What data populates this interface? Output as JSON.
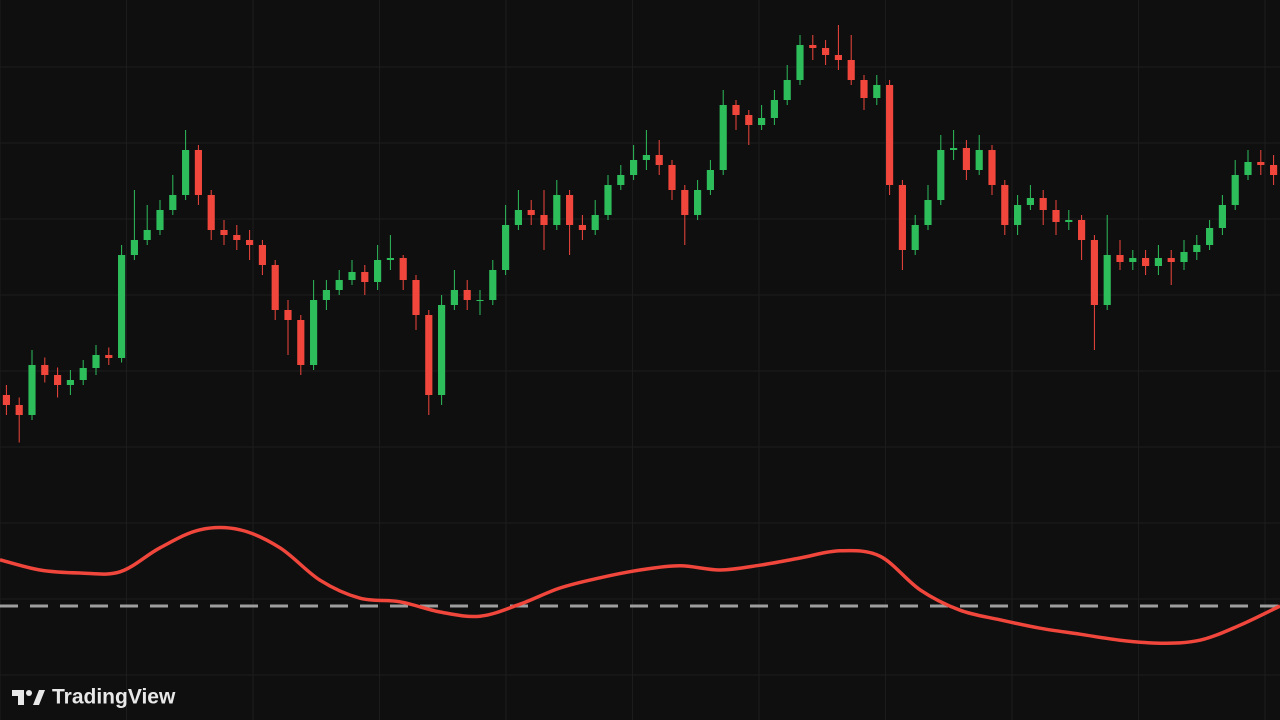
{
  "chart_data": [
    {
      "type": "candlestick",
      "up_color": "#2ebd5b",
      "down_color": "#f0463c",
      "ylim": [
        0,
        96
      ],
      "grid": true,
      "open": [
        17,
        15,
        13,
        23,
        21,
        19,
        20,
        22.4,
        25,
        24.4,
        45,
        48,
        50,
        54,
        57,
        66,
        57,
        50,
        49,
        48,
        47,
        43,
        34,
        32,
        23,
        36,
        38,
        40,
        41.6,
        39.6,
        44,
        44.4,
        40,
        33,
        17,
        35,
        38,
        36,
        36,
        42,
        51,
        54,
        53,
        51,
        57,
        51,
        50,
        53,
        59,
        61,
        64,
        65,
        63,
        58,
        53,
        58,
        62,
        75,
        73,
        71,
        72.4,
        76,
        80,
        87,
        86.4,
        85,
        84,
        80,
        76.4,
        79,
        59,
        46,
        51,
        56,
        66,
        66.4,
        62,
        66,
        59,
        51,
        55,
        56.4,
        54,
        51.6,
        52,
        48,
        35,
        45,
        43.6,
        44.4,
        42.8,
        44.4,
        43.6,
        45.6,
        47,
        50.4,
        55,
        61,
        63.6,
        63
      ],
      "high": [
        19,
        16.5,
        26,
        24.5,
        22.5,
        22,
        24,
        27,
        26.5,
        47,
        58,
        55,
        56,
        61,
        70,
        67,
        58,
        52,
        51,
        50,
        48,
        44,
        36,
        33,
        40,
        40,
        42,
        44,
        43,
        47,
        49,
        45,
        41,
        34,
        37,
        42,
        40,
        38,
        44,
        55,
        58,
        56,
        58,
        60,
        58,
        53,
        56,
        61,
        63,
        67,
        70,
        68,
        64,
        59,
        60,
        64,
        78,
        76,
        74,
        75,
        78,
        83,
        89,
        89,
        88,
        91,
        89,
        81,
        81,
        80,
        60,
        53,
        59,
        69,
        70,
        68,
        69,
        67,
        60,
        57,
        59,
        58,
        56,
        54,
        53,
        49,
        53,
        48,
        46,
        46,
        47,
        46,
        48,
        49,
        52,
        57,
        64,
        66,
        66,
        65
      ],
      "low": [
        13,
        7.5,
        12,
        19.5,
        16.5,
        17,
        19,
        21,
        23,
        23.5,
        44,
        47,
        49,
        53,
        56,
        55,
        48,
        47,
        46,
        44,
        41,
        32,
        25,
        21,
        22,
        34,
        37,
        39,
        37,
        38,
        42,
        38,
        30,
        13,
        15,
        34,
        34,
        33,
        35,
        41,
        50,
        51,
        46,
        50,
        45,
        48,
        49,
        52,
        58,
        60,
        62,
        61,
        56,
        47,
        52,
        57,
        61,
        70,
        67,
        70,
        71,
        75,
        79,
        84,
        83,
        82,
        79,
        74,
        75,
        57,
        42,
        45,
        50,
        55,
        64,
        60,
        61,
        57,
        49,
        49,
        54,
        51,
        49,
        50,
        44,
        26,
        34,
        42,
        42,
        41,
        41,
        39,
        42,
        44,
        46,
        49,
        54,
        60,
        61,
        59
      ],
      "close": [
        15,
        13,
        23,
        21,
        19,
        20,
        22.4,
        25,
        24.4,
        45,
        48,
        50,
        54,
        57,
        66,
        57,
        50,
        49,
        48,
        47,
        43,
        34,
        32,
        23,
        36,
        38,
        40,
        41.6,
        39.6,
        44,
        44.4,
        40,
        33,
        17,
        35,
        38,
        36,
        36,
        42,
        51,
        54,
        53,
        51,
        57,
        51,
        50,
        53,
        59,
        61,
        64,
        65,
        63,
        58,
        53,
        58,
        62,
        75,
        73,
        71,
        72.4,
        76,
        80,
        87,
        86.4,
        85,
        84,
        80,
        76.4,
        79,
        59,
        46,
        51,
        56,
        66,
        66.4,
        62,
        66,
        59,
        51,
        55,
        56.4,
        54,
        51.6,
        52,
        48,
        35,
        45,
        43.6,
        44.4,
        42.8,
        44.4,
        43.6,
        45.6,
        47,
        50.4,
        55,
        61,
        63.6,
        63,
        61
      ]
    },
    {
      "type": "line",
      "color": "#f0463c",
      "xlim": [
        0,
        1280
      ],
      "ylim": [
        -1.5,
        1.5
      ],
      "reference_line": 0,
      "reference_color": "#9e9e9e",
      "x": [
        0,
        40,
        80,
        120,
        160,
        200,
        240,
        280,
        320,
        360,
        400,
        440,
        480,
        520,
        560,
        600,
        640,
        680,
        720,
        760,
        800,
        840,
        880,
        920,
        960,
        1000,
        1040,
        1080,
        1120,
        1160,
        1200,
        1240,
        1280
      ],
      "values": [
        0.77,
        0.6,
        0.55,
        0.57,
        0.97,
        1.27,
        1.27,
        0.97,
        0.43,
        0.13,
        0.07,
        -0.1,
        -0.17,
        0.03,
        0.3,
        0.47,
        0.6,
        0.67,
        0.6,
        0.68,
        0.8,
        0.92,
        0.83,
        0.27,
        -0.07,
        -0.23,
        -0.37,
        -0.47,
        -0.57,
        -0.62,
        -0.57,
        -0.32,
        0
      ]
    }
  ],
  "branding": {
    "text": "TradingView"
  }
}
